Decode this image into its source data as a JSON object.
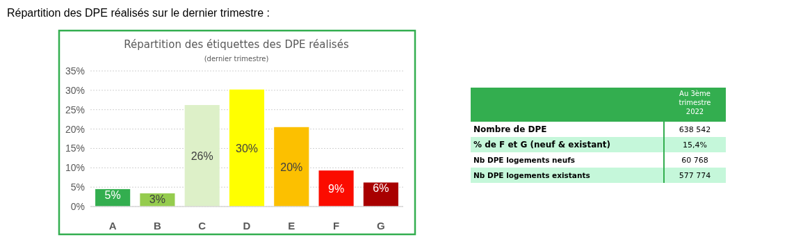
{
  "chart_data": [
    {
      "type": "bar",
      "title": "Répartition des étiquettes des DPE réalisés",
      "subtitle": "(dernier trimestre)",
      "annotations": [
        "Répartition des DPE réalisés sur le dernier trimestre :"
      ],
      "categories": [
        "A",
        "B",
        "C",
        "D",
        "E",
        "F",
        "G"
      ],
      "values": [
        4.5,
        3.4,
        26.2,
        30.2,
        20.5,
        9.3,
        6.2
      ],
      "colors": [
        "#33ae4f",
        "#95cc4e",
        "#ddf0c8",
        "#ffff00",
        "#fcc000",
        "#fb0c00",
        "#a80000"
      ],
      "value_labels": [
        "5%",
        "3%",
        "26%",
        "30%",
        "20%",
        "9%",
        "6%"
      ],
      "ylim": [
        0,
        35
      ],
      "yticks": [
        {
          "value": 0,
          "label": "0%"
        },
        {
          "value": 5,
          "label": "5%"
        },
        {
          "value": 10,
          "label": "10%"
        },
        {
          "value": 15,
          "label": "15%"
        },
        {
          "value": 20,
          "label": "20%"
        },
        {
          "value": 25,
          "label": "25%"
        },
        {
          "value": 30,
          "label": "30%"
        },
        {
          "value": 35,
          "label": "35%"
        }
      ],
      "grid": "y"
    },
    {
      "type": "other",
      "title": "Au 3ème trimestre 2022",
      "categories": [
        "Nombre de DPE",
        "% de F et G (neuf & existant)",
        "Nb DPE logements neufs",
        "Nb DPE logements existants"
      ],
      "value_labels": [
        "638 542",
        "15,4%",
        "60 768",
        "577 774"
      ]
    }
  ]
}
